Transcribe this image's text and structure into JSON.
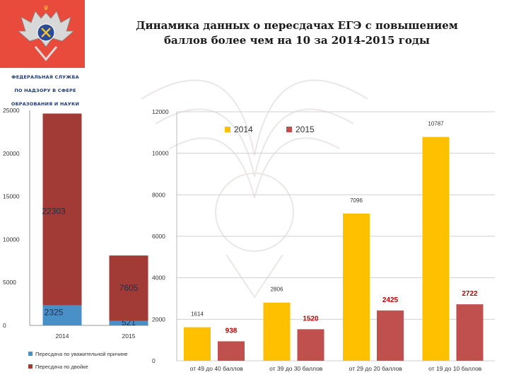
{
  "title_line1": "Динамика данных о пересдачах ЕГЭ с  повышением",
  "title_line2": "баллов  более чем на 10 за 2014-2015 годы",
  "logo": {
    "lines": [
      "ФЕДЕРАЛЬНАЯ СЛУЖБА",
      "ПО НАДЗОРУ В СФЕРЕ",
      "ОБРАЗОВАНИЯ И НАУКИ"
    ],
    "color": "#e84a3c"
  },
  "chart_data": [
    {
      "type": "bar",
      "stacked": true,
      "categories": [
        "2014",
        "2015"
      ],
      "series": [
        {
          "name": "Пересдача по уважительной причине",
          "values": [
            2325,
            521
          ],
          "color": "#4a90c8",
          "label_color": "#1f2d4d"
        },
        {
          "name": "Пересдача по двойке",
          "values": [
            22303,
            7605
          ],
          "color": "#a23a36",
          "label_color": "#1f2d4d"
        }
      ],
      "data_labels": [
        [
          "2325",
          "521"
        ],
        [
          "22303",
          "7605"
        ]
      ],
      "ylim": [
        0,
        25000
      ],
      "yticks": [
        "0",
        "5000",
        "10000",
        "15000",
        "20000",
        "25000"
      ],
      "legend": "bottom",
      "grid": false
    },
    {
      "type": "bar",
      "categories": [
        "от 49 до 40 баллов",
        "от 39 до 30 баллов",
        "от 29 до 20 баллов",
        "от 19 до 10 баллов"
      ],
      "series": [
        {
          "name": "2014",
          "values": [
            1614,
            2806,
            7096,
            10787
          ],
          "color": "#ffc000",
          "label_color": "#333333"
        },
        {
          "name": "2015",
          "values": [
            938,
            1520,
            2425,
            2722
          ],
          "color": "#c0504d",
          "label_color": "#c00000"
        }
      ],
      "data_labels": [
        [
          "1614",
          "2806",
          "7096",
          "10787"
        ],
        [
          "938",
          "1520",
          "2425",
          "2722"
        ]
      ],
      "ylim": [
        0,
        12000
      ],
      "yticks": [
        "0",
        "2000",
        "4000",
        "6000",
        "8000",
        "10000",
        "12000"
      ],
      "legend": "top",
      "grid": true
    }
  ]
}
